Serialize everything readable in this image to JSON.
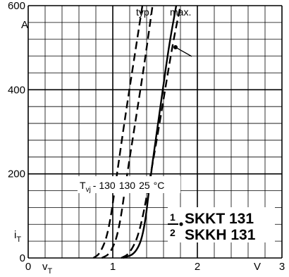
{
  "chart_data": {
    "type": "line",
    "xlim": [
      0,
      3
    ],
    "ylim": [
      0,
      600
    ],
    "x_ticks": [
      "0",
      "1",
      "2",
      "3"
    ],
    "y_ticks": [
      "200",
      "400",
      "600"
    ],
    "x_unit": "V",
    "y_unit": "A",
    "xlabel": "v",
    "xlabel_sub": "T",
    "ylabel": "i",
    "ylabel_sub": "T",
    "grid": true,
    "curve_labels": {
      "typ": "typ.",
      "max": "max."
    },
    "temperature_label": {
      "prefix": "T",
      "prefix_sub": "vj",
      "values": [
        "- 130",
        "130",
        "25"
      ],
      "unit": "°C"
    },
    "title": {
      "fraction_num": "1",
      "fraction_den": "2",
      "line1": "SKKT 131",
      "line2": "SKKH 131"
    },
    "series": [
      {
        "curve": "typ",
        "tvj": "-130",
        "style": "dashed",
        "x": [
          0.77,
          0.85,
          0.95,
          1.05,
          1.15,
          1.25,
          1.35
        ],
        "y": [
          0,
          10,
          60,
          200,
          340,
          470,
          600
        ]
      },
      {
        "curve": "typ",
        "tvj": "130",
        "style": "dashed",
        "x": [
          0.87,
          0.97,
          1.07,
          1.17,
          1.28,
          1.38,
          1.47
        ],
        "y": [
          0,
          10,
          60,
          200,
          340,
          470,
          600
        ]
      },
      {
        "curve": "max",
        "tvj": "130",
        "style": "dashed",
        "x": [
          1.1,
          1.2,
          1.32,
          1.45,
          1.57,
          1.7,
          1.8
        ],
        "y": [
          0,
          10,
          60,
          200,
          340,
          500,
          600
        ]
      },
      {
        "curve": "max",
        "tvj": "25",
        "style": "solid",
        "x": [
          1.12,
          1.27,
          1.37,
          1.45,
          1.55,
          1.66,
          1.75
        ],
        "y": [
          0,
          10,
          60,
          200,
          340,
          500,
          600
        ]
      }
    ]
  }
}
